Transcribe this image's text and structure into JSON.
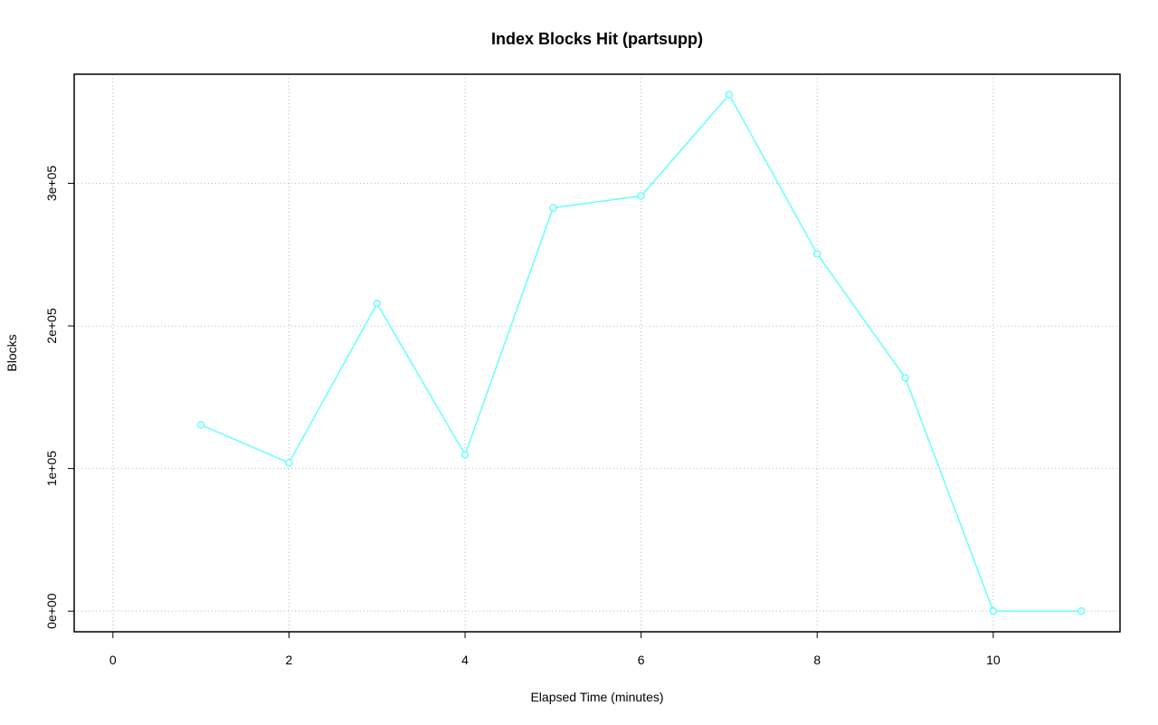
{
  "chart_data": {
    "type": "line",
    "title": "Index Blocks Hit (partsupp)",
    "x_label": "Elapsed Time (minutes)",
    "y_label": "Blocks",
    "x": [
      1,
      2,
      3,
      4,
      5,
      6,
      7,
      8,
      9,
      10,
      11
    ],
    "values": [
      130600,
      104000,
      215600,
      109700,
      282800,
      291100,
      362100,
      250500,
      163600,
      0,
      0
    ],
    "color": "#66ffff",
    "xlim": [
      -0.44,
      11.44
    ],
    "ylim": [
      -14480,
      376480
    ],
    "xticks": [
      0,
      2,
      4,
      6,
      8,
      10
    ],
    "yticks": [
      {
        "value": 0,
        "label": "0e+00"
      },
      {
        "value": 100000,
        "label": "1e+05"
      },
      {
        "value": 200000,
        "label": "2e+05"
      },
      {
        "value": 300000,
        "label": "3e+05"
      }
    ],
    "grid": true
  }
}
